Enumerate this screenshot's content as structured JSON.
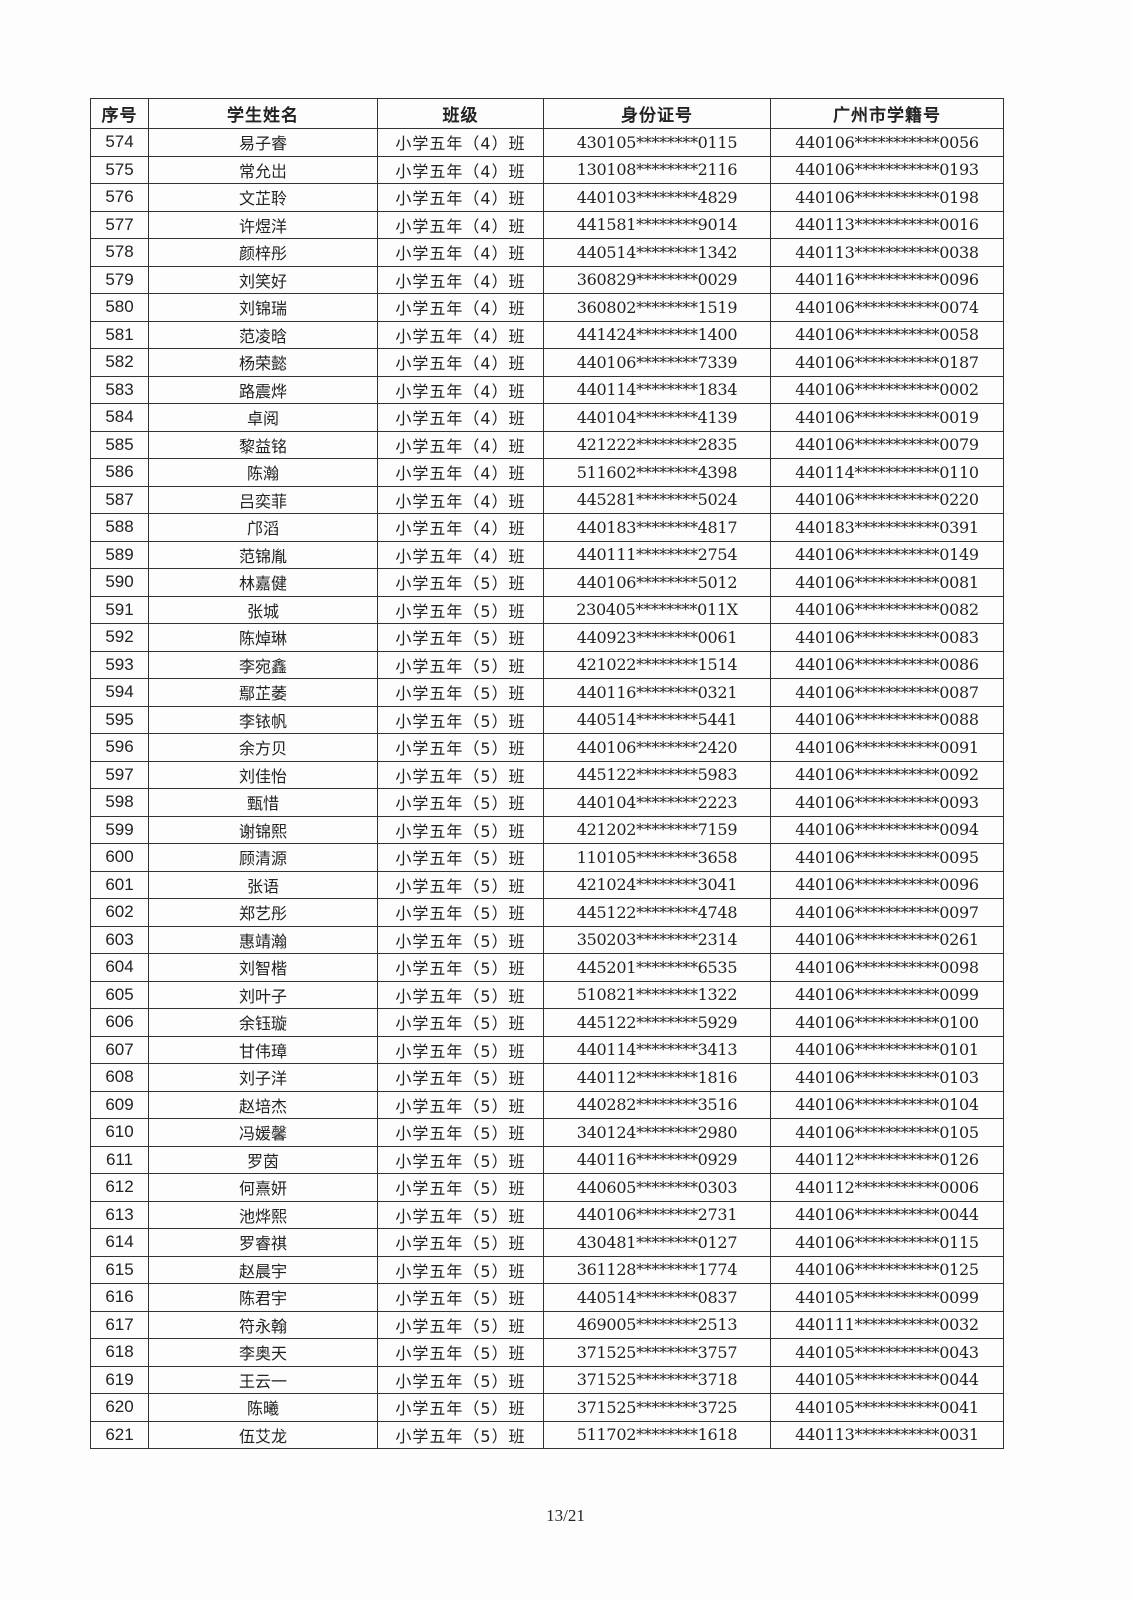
{
  "table": {
    "headers": [
      "序号",
      "学生姓名",
      "班级",
      "身份证号",
      "广州市学籍号"
    ],
    "rows": [
      [
        "574",
        "易子睿",
        "小学五年（4）班",
        "430105********0115",
        "440106***********0056"
      ],
      [
        "575",
        "常允岀",
        "小学五年（4）班",
        "130108********2116",
        "440106***********0193"
      ],
      [
        "576",
        "文芷聆",
        "小学五年（4）班",
        "440103********4829",
        "440106***********0198"
      ],
      [
        "577",
        "许煜洋",
        "小学五年（4）班",
        "441581********9014",
        "440113***********0016"
      ],
      [
        "578",
        "颜梓彤",
        "小学五年（4）班",
        "440514********1342",
        "440113***********0038"
      ],
      [
        "579",
        "刘笑好",
        "小学五年（4）班",
        "360829********0029",
        "440116***********0096"
      ],
      [
        "580",
        "刘锦瑞",
        "小学五年（4）班",
        "360802********1519",
        "440106***********0074"
      ],
      [
        "581",
        "范凌晗",
        "小学五年（4）班",
        "441424********1400",
        "440106***********0058"
      ],
      [
        "582",
        "杨荣懿",
        "小学五年（4）班",
        "440106********7339",
        "440106***********0187"
      ],
      [
        "583",
        "路震烨",
        "小学五年（4）班",
        "440114********1834",
        "440106***********0002"
      ],
      [
        "584",
        "卓阅",
        "小学五年（4）班",
        "440104********4139",
        "440106***********0019"
      ],
      [
        "585",
        "黎益铭",
        "小学五年（4）班",
        "421222********2835",
        "440106***********0079"
      ],
      [
        "586",
        "陈瀚",
        "小学五年（4）班",
        "511602********4398",
        "440114***********0110"
      ],
      [
        "587",
        "吕奕菲",
        "小学五年（4）班",
        "445281********5024",
        "440106***********0220"
      ],
      [
        "588",
        "邝滔",
        "小学五年（4）班",
        "440183********4817",
        "440183***********0391"
      ],
      [
        "589",
        "范锦胤",
        "小学五年（4）班",
        "440111********2754",
        "440106***********0149"
      ],
      [
        "590",
        "林嘉健",
        "小学五年（5）班",
        "440106********5012",
        "440106***********0081"
      ],
      [
        "591",
        "张城",
        "小学五年（5）班",
        "230405********011X",
        "440106***********0082"
      ],
      [
        "592",
        "陈焯琳",
        "小学五年（5）班",
        "440923********0061",
        "440106***********0083"
      ],
      [
        "593",
        "李宛鑫",
        "小学五年（5）班",
        "421022********1514",
        "440106***********0086"
      ],
      [
        "594",
        "鄢芷萎",
        "小学五年（5）班",
        "440116********0321",
        "440106***********0087"
      ],
      [
        "595",
        "李铱帆",
        "小学五年（5）班",
        "440514********5441",
        "440106***********0088"
      ],
      [
        "596",
        "余方贝",
        "小学五年（5）班",
        "440106********2420",
        "440106***********0091"
      ],
      [
        "597",
        "刘佳怡",
        "小学五年（5）班",
        "445122********5983",
        "440106***********0092"
      ],
      [
        "598",
        "甄惜",
        "小学五年（5）班",
        "440104********2223",
        "440106***********0093"
      ],
      [
        "599",
        "谢锦熙",
        "小学五年（5）班",
        "421202********7159",
        "440106***********0094"
      ],
      [
        "600",
        "顾清源",
        "小学五年（5）班",
        "110105********3658",
        "440106***********0095"
      ],
      [
        "601",
        "张语",
        "小学五年（5）班",
        "421024********3041",
        "440106***********0096"
      ],
      [
        "602",
        "郑艺彤",
        "小学五年（5）班",
        "445122********4748",
        "440106***********0097"
      ],
      [
        "603",
        "惠靖瀚",
        "小学五年（5）班",
        "350203********2314",
        "440106***********0261"
      ],
      [
        "604",
        "刘智楷",
        "小学五年（5）班",
        "445201********6535",
        "440106***********0098"
      ],
      [
        "605",
        "刘叶子",
        "小学五年（5）班",
        "510821********1322",
        "440106***********0099"
      ],
      [
        "606",
        "余钰璇",
        "小学五年（5）班",
        "445122********5929",
        "440106***********0100"
      ],
      [
        "607",
        "甘伟璋",
        "小学五年（5）班",
        "440114********3413",
        "440106***********0101"
      ],
      [
        "608",
        "刘子洋",
        "小学五年（5）班",
        "440112********1816",
        "440106***********0103"
      ],
      [
        "609",
        "赵培杰",
        "小学五年（5）班",
        "440282********3516",
        "440106***********0104"
      ],
      [
        "610",
        "冯媛馨",
        "小学五年（5）班",
        "340124********2980",
        "440106***********0105"
      ],
      [
        "611",
        "罗茵",
        "小学五年（5）班",
        "440116********0929",
        "440112***********0126"
      ],
      [
        "612",
        "何熹妍",
        "小学五年（5）班",
        "440605********0303",
        "440112***********0006"
      ],
      [
        "613",
        "池烨熙",
        "小学五年（5）班",
        "440106********2731",
        "440106***********0044"
      ],
      [
        "614",
        "罗睿祺",
        "小学五年（5）班",
        "430481********0127",
        "440106***********0115"
      ],
      [
        "615",
        "赵晨宇",
        "小学五年（5）班",
        "361128********1774",
        "440106***********0125"
      ],
      [
        "616",
        "陈君宇",
        "小学五年（5）班",
        "440514********0837",
        "440105***********0099"
      ],
      [
        "617",
        "符永翰",
        "小学五年（5）班",
        "469005********2513",
        "440111***********0032"
      ],
      [
        "618",
        "李奥天",
        "小学五年（5）班",
        "371525********3757",
        "440105***********0043"
      ],
      [
        "619",
        "王云一",
        "小学五年（5）班",
        "371525********3718",
        "440105***********0044"
      ],
      [
        "620",
        "陈曦",
        "小学五年（5）班",
        "371525********3725",
        "440105***********0041"
      ],
      [
        "621",
        "伍艾龙",
        "小学五年（5）班",
        "511702********1618",
        "440113***********0031"
      ]
    ]
  },
  "footer": {
    "page_number": "13/21"
  }
}
